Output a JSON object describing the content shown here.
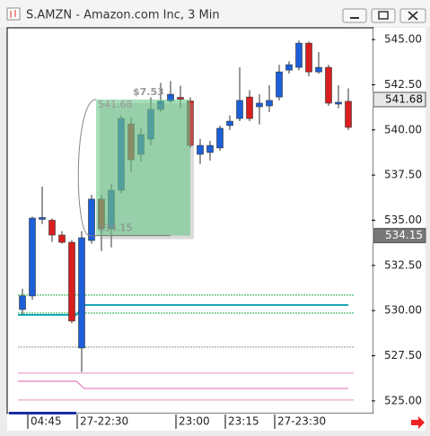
{
  "window_title": "S.AMZN - Amazon.com Inc, 3 Min",
  "chart_data": {
    "type": "candlestick",
    "categories": [
      null,
      "04:45",
      null,
      null,
      null,
      null,
      "27-22:30",
      null,
      null,
      null,
      null,
      null,
      null,
      null,
      null,
      null,
      "23:00",
      null,
      null,
      null,
      null,
      "23:15",
      null,
      null,
      null,
      null,
      "27-23:30",
      null,
      null,
      null,
      null,
      null,
      null,
      null
    ],
    "open": [
      530.06,
      530.81,
      535.05,
      535.0,
      534.18,
      533.78,
      527.93,
      533.88,
      536.17,
      534.53,
      536.66,
      540.33,
      538.65,
      539.49,
      541.13,
      541.6,
      541.8,
      541.6,
      538.65,
      538.75,
      539.0,
      540.24,
      540.63,
      541.82,
      541.28,
      541.33,
      541.82,
      543.31,
      543.46,
      544.8,
      543.21,
      543.46,
      541.43,
      541.58
    ],
    "high": [
      531.2,
      535.2,
      536.86,
      535.1,
      534.4,
      533.9,
      534.4,
      536.4,
      536.4,
      537.0,
      540.8,
      540.7,
      540.1,
      541.8,
      542.6,
      542.7,
      542.45,
      541.8,
      539.5,
      539.4,
      540.24,
      540.8,
      543.46,
      542.2,
      541.97,
      542.47,
      543.6,
      543.8,
      544.95,
      544.9,
      544.3,
      543.6,
      542.47,
      542.3
    ],
    "low": [
      529.8,
      530.6,
      534.78,
      533.8,
      533.7,
      529.3,
      526.6,
      533.7,
      533.3,
      533.5,
      536.5,
      537.65,
      538.25,
      539.14,
      541.0,
      541.5,
      541.2,
      539.0,
      538.1,
      538.3,
      538.85,
      539.99,
      540.48,
      540.48,
      540.3,
      540.98,
      541.63,
      543.11,
      543.3,
      542.97,
      543.11,
      541.33,
      541.2,
      539.99
    ],
    "close": [
      530.81,
      535.12,
      535.15,
      534.18,
      533.78,
      529.42,
      534.03,
      536.17,
      534.53,
      536.66,
      540.63,
      538.35,
      539.74,
      541.13,
      541.58,
      541.97,
      541.7,
      539.14,
      539.14,
      539.14,
      540.09,
      540.48,
      541.63,
      540.63,
      541.48,
      541.63,
      543.21,
      543.61,
      544.8,
      543.21,
      543.46,
      541.48,
      541.53,
      540.14
    ],
    "up_color": "#1c5fd8",
    "down_color": "#d81e1e",
    "ylim": [
      524.35,
      545.6
    ],
    "yticks": [
      {
        "value": 525,
        "label": "525.00"
      },
      {
        "value": 527.5,
        "label": "527.50"
      },
      {
        "value": 530,
        "label": "530.00"
      },
      {
        "value": 532.5,
        "label": "532.50"
      },
      {
        "value": 535,
        "label": "535.00"
      },
      {
        "value": 537.5,
        "label": "537.50"
      },
      {
        "value": 540,
        "label": "540.00"
      },
      {
        "value": 542.5,
        "label": "542.50"
      },
      {
        "value": 545,
        "label": "545.00"
      }
    ],
    "price_markers": [
      541.68,
      534.15
    ],
    "measure": {
      "top": 541.68,
      "bottom": 534.15,
      "change": 7.53,
      "change_label": "$7.53",
      "from": 8,
      "to": 17
    },
    "hlines": [
      {
        "value": 530.86,
        "color": "#22b04a",
        "dash": "2,1"
      },
      {
        "value": 529.86,
        "color": "#22b04a",
        "dash": "2,1"
      },
      {
        "value": 527.98,
        "color": "#999999",
        "dash": "2,1"
      },
      {
        "value": 526.54,
        "color": "#e68ac4",
        "dash": ""
      },
      {
        "value": 525.05,
        "color": "#e68ac4",
        "dash": ""
      }
    ],
    "steplines": [
      {
        "values": [
          529.76,
          530.31
        ],
        "step": 6,
        "color": "#1aa7b8"
      },
      {
        "values": [
          526.09,
          525.69
        ],
        "step": 6,
        "color": "#e68ac4"
      }
    ]
  }
}
